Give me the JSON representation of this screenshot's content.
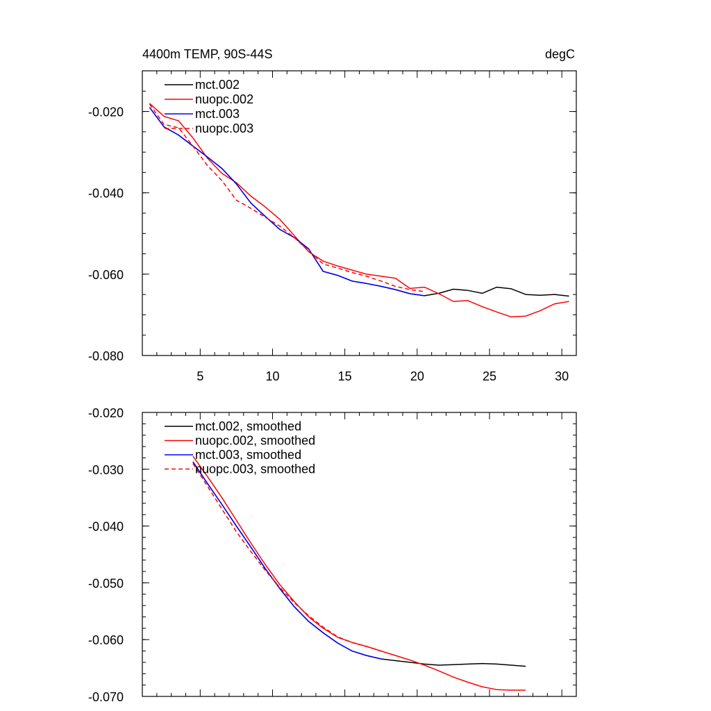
{
  "chart_data": [
    {
      "type": "line",
      "title": "4400m TEMP, 90S-44S",
      "units": "degC",
      "xlim": [
        1,
        31
      ],
      "ylim": [
        -0.08,
        -0.01
      ],
      "x_ticks": [
        5,
        10,
        15,
        20,
        25,
        30
      ],
      "x_tick_labels": [
        "5",
        "10",
        "15",
        "20",
        "25",
        "30"
      ],
      "y_ticks": [
        -0.08,
        -0.06,
        -0.04,
        -0.02
      ],
      "y_tick_labels": [
        "-0.080",
        "-0.060",
        "-0.040",
        "-0.020"
      ],
      "legend_position": "top-left",
      "series": [
        {
          "name": "mct.002",
          "color": "#000000",
          "dash": "solid",
          "x": [
            1.5,
            2.5,
            3.5,
            4.5,
            5.5,
            6.5,
            7.5,
            8.5,
            9.5,
            10.5,
            11.5,
            12.5,
            13.5,
            14.5,
            15.5,
            16.5,
            17.5,
            18.5,
            19.5,
            20.5,
            21.5,
            22.5,
            23.5,
            24.5,
            25.5,
            26.5,
            27.5,
            28.5,
            29.5,
            30.5
          ],
          "values": [
            -0.019,
            -0.0238,
            -0.0258,
            -0.0285,
            -0.0312,
            -0.034,
            -0.0378,
            -0.0425,
            -0.0458,
            -0.049,
            -0.051,
            -0.0538,
            -0.0593,
            -0.0603,
            -0.0617,
            -0.0623,
            -0.063,
            -0.0638,
            -0.0648,
            -0.0653,
            -0.0647,
            -0.0637,
            -0.064,
            -0.0647,
            -0.0632,
            -0.0636,
            -0.065,
            -0.0652,
            -0.065,
            -0.0654
          ]
        },
        {
          "name": "nuopc.002",
          "color": "#ff0000",
          "dash": "solid",
          "x": [
            1.5,
            2.5,
            3.5,
            4.5,
            5.5,
            6.5,
            7.5,
            8.5,
            9.5,
            10.5,
            11.5,
            12.5,
            13.5,
            14.5,
            15.5,
            16.5,
            17.5,
            18.5,
            19.5,
            20.5,
            21.5,
            22.5,
            23.5,
            24.5,
            25.5,
            26.5,
            27.5,
            28.5,
            29.5,
            30.5
          ],
          "values": [
            -0.018,
            -0.0212,
            -0.0223,
            -0.0265,
            -0.0315,
            -0.0352,
            -0.0375,
            -0.0408,
            -0.0435,
            -0.0465,
            -0.0505,
            -0.0545,
            -0.0568,
            -0.058,
            -0.059,
            -0.06,
            -0.0605,
            -0.061,
            -0.0635,
            -0.0632,
            -0.0648,
            -0.0667,
            -0.0665,
            -0.068,
            -0.0693,
            -0.0705,
            -0.0703,
            -0.069,
            -0.0673,
            -0.0667
          ]
        },
        {
          "name": "mct.003",
          "color": "#0000ff",
          "dash": "solid",
          "x": [
            1.5,
            2.5,
            3.5,
            4.5,
            5.5,
            6.5,
            7.5,
            8.5,
            9.5,
            10.5,
            11.5,
            12.5,
            13.5,
            14.5,
            15.5,
            16.5,
            17.5,
            18.5,
            19.5,
            20.5
          ],
          "values": [
            -0.019,
            -0.0238,
            -0.0258,
            -0.0285,
            -0.0312,
            -0.034,
            -0.0378,
            -0.0425,
            -0.0458,
            -0.049,
            -0.051,
            -0.0538,
            -0.0593,
            -0.0603,
            -0.0617,
            -0.0623,
            -0.063,
            -0.0638,
            -0.0648,
            -0.0653
          ]
        },
        {
          "name": "nuopc.003",
          "color": "#ff0000",
          "dash": "dashed",
          "x": [
            1.5,
            2.5,
            3.5,
            4.5,
            5.5,
            6.5,
            7.5,
            8.5,
            9.5,
            10.5,
            11.5,
            12.5,
            13.5,
            14.5,
            15.5,
            16.5,
            17.5,
            18.5,
            19.5,
            20.5
          ],
          "values": [
            -0.0182,
            -0.0232,
            -0.024,
            -0.0285,
            -0.0333,
            -0.037,
            -0.0418,
            -0.0438,
            -0.046,
            -0.0482,
            -0.051,
            -0.0543,
            -0.0575,
            -0.0585,
            -0.0596,
            -0.0605,
            -0.0617,
            -0.063,
            -0.0638,
            -0.0643
          ]
        }
      ]
    },
    {
      "type": "line",
      "xlim": [
        1,
        31
      ],
      "ylim": [
        -0.07,
        -0.02
      ],
      "x_ticks": [
        5,
        10,
        15,
        20,
        25,
        30
      ],
      "y_ticks": [
        -0.07,
        -0.06,
        -0.05,
        -0.04,
        -0.03,
        -0.02
      ],
      "y_tick_labels": [
        "-0.070",
        "-0.060",
        "-0.050",
        "-0.040",
        "-0.030",
        "-0.020"
      ],
      "legend_position": "top-left",
      "series": [
        {
          "name": "mct.002, smoothed",
          "color": "#000000",
          "dash": "solid",
          "x": [
            4.5,
            5.5,
            6.5,
            7.5,
            8.5,
            9.5,
            10.5,
            11.5,
            12.5,
            13.5,
            14.5,
            15.5,
            16.5,
            17.5,
            18.5,
            19.5,
            20.5,
            21.5,
            22.5,
            23.5,
            24.5,
            25.5,
            26.5,
            27.5
          ],
          "values": [
            -0.0287,
            -0.0325,
            -0.0362,
            -0.04,
            -0.0437,
            -0.0475,
            -0.051,
            -0.0542,
            -0.0568,
            -0.0588,
            -0.0606,
            -0.062,
            -0.0628,
            -0.0634,
            -0.0637,
            -0.064,
            -0.0643,
            -0.0645,
            -0.0644,
            -0.0643,
            -0.0642,
            -0.0643,
            -0.0645,
            -0.0647
          ]
        },
        {
          "name": "nuopc.002, smoothed",
          "color": "#ff0000",
          "dash": "solid",
          "x": [
            4.5,
            5.5,
            6.5,
            7.5,
            8.5,
            9.5,
            10.5,
            11.5,
            12.5,
            13.5,
            14.5,
            15.5,
            16.5,
            17.5,
            18.5,
            19.5,
            20.5,
            21.5,
            22.5,
            23.5,
            24.5,
            25.5,
            26.5,
            27.5
          ],
          "values": [
            -0.0277,
            -0.0313,
            -0.035,
            -0.039,
            -0.043,
            -0.0468,
            -0.0503,
            -0.0533,
            -0.056,
            -0.058,
            -0.0596,
            -0.0605,
            -0.0612,
            -0.062,
            -0.0628,
            -0.0636,
            -0.0645,
            -0.0655,
            -0.0666,
            -0.0675,
            -0.0683,
            -0.0688,
            -0.0689,
            -0.0689
          ]
        },
        {
          "name": "mct.003, smoothed",
          "color": "#0000ff",
          "dash": "solid",
          "x": [
            4.5,
            5.5,
            6.5,
            7.5,
            8.5,
            9.5,
            10.5,
            11.5,
            12.5,
            13.5,
            14.5,
            15.5,
            16.5,
            17.5
          ],
          "values": [
            -0.0287,
            -0.0325,
            -0.0362,
            -0.04,
            -0.0437,
            -0.0475,
            -0.051,
            -0.0542,
            -0.0568,
            -0.0588,
            -0.0606,
            -0.062,
            -0.0628,
            -0.0634
          ]
        },
        {
          "name": "nuopc.003, smoothed",
          "color": "#ff0000",
          "dash": "dashed",
          "x": [
            4.5,
            5.5,
            6.5,
            7.5,
            8.5,
            9.5,
            10.5,
            11.5,
            12.5,
            13.5,
            14.5,
            15.5,
            16.5,
            17.5
          ],
          "values": [
            -0.029,
            -0.033,
            -0.037,
            -0.041,
            -0.0445,
            -0.0478,
            -0.0508,
            -0.0535,
            -0.0558,
            -0.0578,
            -0.0595,
            -0.0605,
            -0.0612,
            -0.062
          ]
        }
      ]
    }
  ]
}
